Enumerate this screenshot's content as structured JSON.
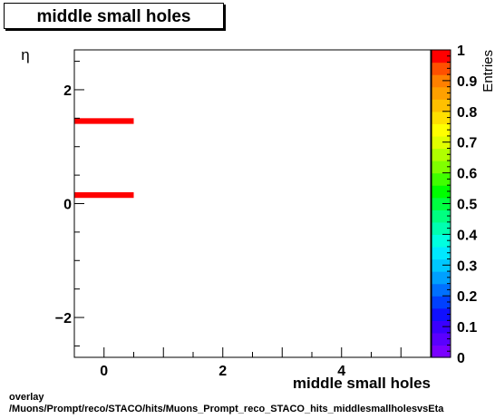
{
  "chart_data": {
    "type": "heatmap",
    "title": "middle small holes",
    "xlabel": "middle small holes",
    "ylabel": "η",
    "zlabel": "Entries",
    "xlim": [
      -0.5,
      5.5
    ],
    "ylim": [
      -2.7,
      2.7
    ],
    "zlim": [
      0,
      1
    ],
    "x_ticks": [
      0,
      2,
      4
    ],
    "x_tick_labels": [
      "0",
      "2",
      "4"
    ],
    "y_ticks": [
      -2,
      0,
      2
    ],
    "y_tick_labels": [
      "−2",
      "0",
      "2"
    ],
    "z_ticks": [
      0,
      0.1,
      0.2,
      0.3,
      0.4,
      0.5,
      0.6,
      0.7,
      0.8,
      0.9,
      1
    ],
    "z_tick_labels": [
      "0",
      "0.1",
      "0.2",
      "0.3",
      "0.4",
      "0.5",
      "0.6",
      "0.7",
      "0.8",
      "0.9",
      "1"
    ],
    "cells": [
      {
        "x0": -0.5,
        "x1": 0.5,
        "y0": 1.4,
        "y1": 1.5,
        "value": 1
      },
      {
        "x0": -0.5,
        "x1": 0.5,
        "y0": 0.1,
        "y1": 0.2,
        "value": 1
      }
    ],
    "palette": [
      "#7a00ff",
      "#5a00ff",
      "#3a00ff",
      "#1010ff",
      "#0040ff",
      "#0070ff",
      "#00a0ff",
      "#00c8ff",
      "#00e8ff",
      "#00ffe0",
      "#00ffb0",
      "#00ff80",
      "#00ff40",
      "#00ff00",
      "#40ff00",
      "#80ff00",
      "#b0ff00",
      "#e0ff00",
      "#ffff00",
      "#ffe000",
      "#ffc000",
      "#ffa000",
      "#ff8000",
      "#ff5000",
      "#ff0000"
    ]
  },
  "footer": {
    "line1": "overlay",
    "line2": "/Muons/Prompt/reco/STACO/hits/Muons_Prompt_reco_STACO_hits_middlesmallholesvsEta"
  }
}
